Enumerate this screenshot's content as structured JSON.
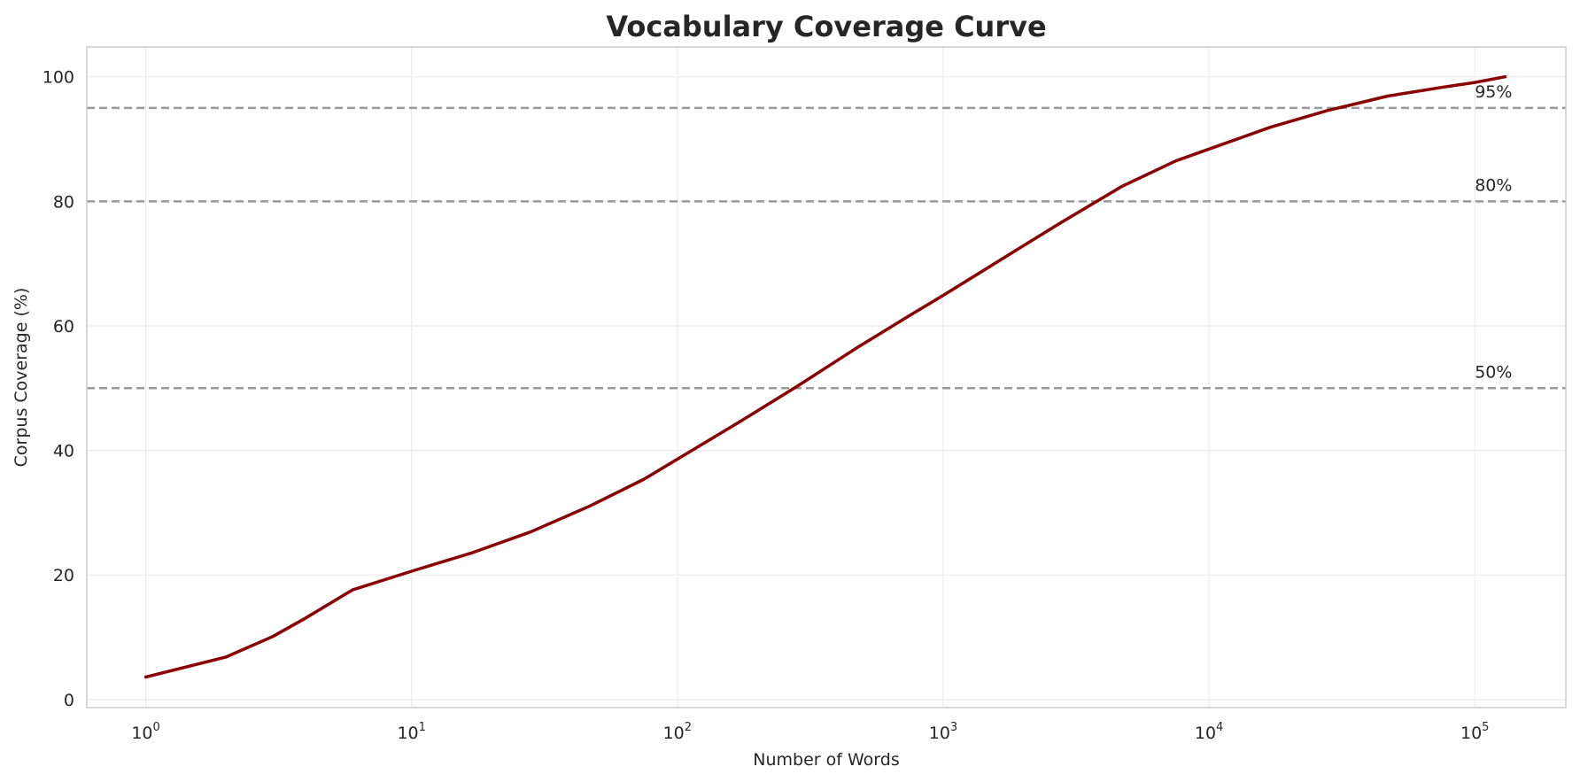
{
  "chart_data": {
    "type": "line",
    "title": "Vocabulary Coverage Curve",
    "xlabel": "Number of Words",
    "ylabel": "Corpus Coverage (%)",
    "x_scale": "log",
    "xlim": [
      0.6,
      220000
    ],
    "ylim": [
      -1.3,
      104.8
    ],
    "grid": true,
    "x_ticks": [
      {
        "value": 1,
        "base": "10",
        "exp": "0"
      },
      {
        "value": 10,
        "base": "10",
        "exp": "1"
      },
      {
        "value": 100,
        "base": "10",
        "exp": "2"
      },
      {
        "value": 1000,
        "base": "10",
        "exp": "3"
      },
      {
        "value": 10000,
        "base": "10",
        "exp": "4"
      },
      {
        "value": 100000,
        "base": "10",
        "exp": "5"
      }
    ],
    "y_ticks": [
      {
        "value": 0,
        "label": "0"
      },
      {
        "value": 20,
        "label": "20"
      },
      {
        "value": 40,
        "label": "40"
      },
      {
        "value": 60,
        "label": "60"
      },
      {
        "value": 80,
        "label": "80"
      },
      {
        "value": 100,
        "label": "100"
      }
    ],
    "reference_lines": [
      {
        "value": 95,
        "label": "95%"
      },
      {
        "value": 80,
        "label": "80%"
      },
      {
        "value": 50,
        "label": "50%"
      }
    ],
    "series": [
      {
        "color": "#8b0000",
        "x": [
          1,
          2,
          3,
          4,
          5,
          6,
          10,
          17,
          28,
          47,
          75,
          100,
          170,
          280,
          470,
          750,
          1000,
          1700,
          2800,
          4700,
          7500,
          10000,
          17000,
          28000,
          47000,
          75000,
          100000,
          130000
        ],
        "y": [
          3.6,
          6.8,
          10.1,
          13.1,
          15.6,
          17.6,
          20.6,
          23.6,
          26.9,
          31.1,
          35.4,
          38.6,
          44.5,
          50.2,
          56.4,
          61.7,
          64.9,
          71.0,
          76.7,
          82.4,
          86.5,
          88.4,
          91.9,
          94.6,
          96.9,
          98.3,
          99.1,
          100.0
        ]
      }
    ]
  }
}
